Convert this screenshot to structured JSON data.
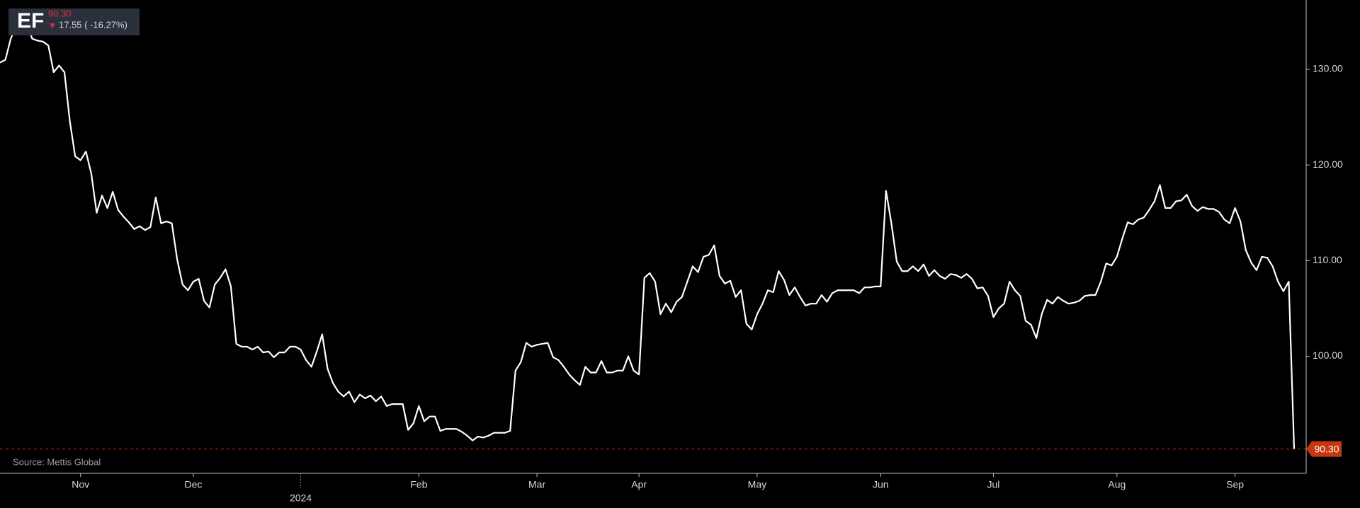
{
  "header": {
    "ticker": "EF",
    "price": "90.30",
    "change": "17.55 ( -16.27%)"
  },
  "chart_data": {
    "type": "line",
    "source": "Source: Mettis Global",
    "color": "#ffffff",
    "categories": [
      null,
      null,
      null,
      null,
      null,
      null,
      null,
      null,
      null,
      null,
      null,
      null,
      null,
      null,
      null,
      "Nov",
      null,
      null,
      null,
      null,
      null,
      null,
      null,
      null,
      null,
      null,
      null,
      null,
      null,
      null,
      null,
      null,
      null,
      null,
      null,
      null,
      "Dec",
      null,
      null,
      null,
      null,
      null,
      null,
      null,
      null,
      null,
      null,
      null,
      null,
      null,
      null,
      null,
      null,
      null,
      null,
      null,
      "2024",
      null,
      null,
      null,
      null,
      null,
      null,
      null,
      null,
      null,
      null,
      null,
      null,
      null,
      null,
      null,
      null,
      null,
      null,
      null,
      null,
      null,
      "Feb",
      null,
      null,
      null,
      null,
      null,
      null,
      null,
      null,
      null,
      null,
      null,
      null,
      null,
      null,
      null,
      null,
      null,
      null,
      null,
      null,
      null,
      "Mar",
      null,
      null,
      null,
      null,
      null,
      null,
      null,
      null,
      null,
      null,
      null,
      null,
      null,
      null,
      null,
      null,
      null,
      null,
      "Apr",
      null,
      null,
      null,
      null,
      null,
      null,
      null,
      null,
      null,
      null,
      null,
      null,
      null,
      null,
      null,
      null,
      null,
      null,
      null,
      null,
      null,
      "May",
      null,
      null,
      null,
      null,
      null,
      null,
      null,
      null,
      null,
      null,
      null,
      null,
      null,
      null,
      null,
      null,
      null,
      null,
      null,
      null,
      null,
      null,
      "Jun",
      null,
      null,
      null,
      null,
      null,
      null,
      null,
      null,
      null,
      null,
      null,
      null,
      null,
      null,
      null,
      null,
      null,
      null,
      null,
      null,
      "Jul",
      null,
      null,
      null,
      null,
      null,
      null,
      null,
      null,
      null,
      null,
      null,
      null,
      null,
      null,
      null,
      null,
      null,
      null,
      null,
      null,
      null,
      null,
      "Aug",
      null,
      null,
      null,
      null,
      null,
      null,
      null,
      null,
      null,
      null,
      null,
      null,
      null,
      null,
      null,
      null,
      null,
      null,
      null,
      null,
      null,
      "Sep",
      null,
      null,
      null,
      null,
      null,
      null,
      null,
      null,
      null,
      null,
      null
    ],
    "values": [
      130.7,
      131,
      133.2,
      134.5,
      135.6,
      134.7,
      133.2,
      133,
      132.9,
      132.5,
      129.7,
      130.4,
      129.7,
      124.6,
      120.9,
      120.5,
      121.4,
      119.1,
      115,
      116.8,
      115.5,
      117.2,
      115.3,
      114.6,
      114,
      113.3,
      113.6,
      113.2,
      113.5,
      116.6,
      113.9,
      114.1,
      113.9,
      110.1,
      107.5,
      106.9,
      107.8,
      108.1,
      105.8,
      105.1,
      107.5,
      108.2,
      109.1,
      107.3,
      101.3,
      101,
      101,
      100.7,
      101,
      100.4,
      100.5,
      99.9,
      100.4,
      100.4,
      101,
      101,
      100.7,
      99.6,
      98.9,
      100.5,
      102.3,
      98.7,
      97.2,
      96.3,
      95.8,
      96.3,
      95.2,
      96,
      95.6,
      95.9,
      95.3,
      95.8,
      94.8,
      95,
      95,
      95,
      92.3,
      93,
      94.8,
      93.2,
      93.7,
      93.7,
      92.2,
      92.4,
      92.4,
      92.4,
      92.1,
      91.7,
      91.2,
      91.6,
      91.5,
      91.7,
      92,
      92,
      92,
      92.2,
      98.5,
      99.4,
      101.4,
      101,
      101.2,
      101.3,
      101.4,
      99.9,
      99.6,
      98.9,
      98.1,
      97.5,
      97,
      98.9,
      98.3,
      98.3,
      99.5,
      98.3,
      98.3,
      98.5,
      98.5,
      100,
      98.5,
      98.1,
      108.2,
      108.7,
      107.8,
      104.4,
      105.5,
      104.6,
      105.7,
      106.2,
      107.8,
      109.4,
      108.8,
      110.4,
      110.6,
      111.6,
      108.4,
      107.6,
      107.9,
      106.2,
      106.9,
      103.4,
      102.8,
      104.4,
      105.5,
      106.9,
      106.7,
      108.9,
      108,
      106.4,
      107.2,
      106.2,
      105.3,
      105.5,
      105.5,
      106.4,
      105.7,
      106.6,
      106.9,
      106.9,
      106.9,
      106.9,
      106.6,
      107.2,
      107.2,
      107.3,
      107.3,
      117.3,
      113.9,
      109.9,
      108.9,
      108.9,
      109.4,
      108.9,
      109.6,
      108.4,
      109,
      108.4,
      108.1,
      108.6,
      108.5,
      108.2,
      108.6,
      108.1,
      107.1,
      107.2,
      106.3,
      104.1,
      105,
      105.5,
      107.8,
      106.9,
      106.3,
      103.7,
      103.3,
      101.9,
      104.4,
      105.9,
      105.5,
      106.2,
      105.8,
      105.5,
      105.6,
      105.8,
      106.3,
      106.4,
      106.4,
      107.8,
      109.7,
      109.5,
      110.4,
      112.3,
      114,
      113.8,
      114.3,
      114.5,
      115.3,
      116.2,
      117.9,
      115.5,
      115.5,
      116.2,
      116.3,
      116.9,
      115.7,
      115.2,
      115.6,
      115.4,
      115.4,
      115.1,
      114.3,
      113.9,
      115.5,
      114.1,
      111.1,
      109.8,
      109,
      110.4,
      110.3,
      109.4,
      107.8,
      106.8,
      107.8,
      90.3
    ],
    "value_labels": [
      null,
      null,
      null,
      null,
      null,
      null,
      null,
      null,
      null,
      null,
      null,
      null,
      null,
      null,
      null,
      null,
      null,
      null,
      null,
      null,
      null,
      null,
      null,
      null,
      null,
      null,
      null,
      null,
      null,
      null,
      null,
      null,
      null,
      null,
      null,
      null,
      null,
      null,
      null,
      null,
      null,
      null,
      null,
      null,
      null,
      null,
      null,
      null,
      null,
      null,
      null,
      null,
      null,
      null,
      null,
      null,
      null,
      null,
      null,
      null,
      null,
      null,
      null,
      null,
      null,
      null,
      null,
      null,
      null,
      null,
      null,
      null,
      null,
      null,
      null,
      null,
      null,
      null,
      null,
      null,
      null,
      null,
      null,
      null,
      null,
      null,
      null,
      null,
      null,
      null,
      null,
      null,
      null,
      null,
      null,
      null,
      null,
      null,
      null,
      null,
      null,
      null,
      null,
      null,
      null,
      null,
      null,
      null,
      null,
      null,
      null,
      null,
      null,
      null,
      null,
      null,
      null,
      null,
      null,
      null,
      null,
      null,
      null,
      null,
      null,
      null,
      null,
      null,
      null,
      null,
      null,
      null,
      null,
      null,
      null,
      null,
      null,
      null,
      null,
      null,
      null,
      null,
      null,
      null,
      null,
      null,
      null,
      null,
      null,
      null,
      null,
      null,
      null,
      null,
      null,
      null,
      null,
      null,
      null,
      null,
      null,
      null,
      null,
      null,
      null,
      null,
      null,
      null,
      null,
      null,
      null,
      null,
      null,
      null,
      null,
      null,
      null,
      null,
      null,
      null,
      null,
      null,
      null,
      null,
      null,
      null,
      null,
      null,
      null,
      null,
      null,
      null,
      null,
      null,
      null,
      null,
      null,
      null,
      null,
      null,
      null,
      null,
      null,
      null,
      null,
      null,
      null,
      null,
      null,
      null,
      null,
      null,
      null,
      null,
      null,
      null,
      null,
      null,
      null,
      null,
      null,
      null,
      null,
      null,
      null,
      null,
      null,
      null,
      null,
      null,
      null,
      null,
      null,
      null,
      null,
      null,
      null,
      null,
      null,
      null,
      null,
      "90.30"
    ],
    "ylim": [
      87.76,
      137.25
    ],
    "yticks": [
      {
        "value": 100,
        "label": "100.00"
      },
      {
        "value": 110,
        "label": "110.00"
      },
      {
        "value": 120,
        "label": "120.00"
      },
      {
        "value": 130,
        "label": "130.00"
      }
    ],
    "last_line_color": "#c5370f"
  }
}
